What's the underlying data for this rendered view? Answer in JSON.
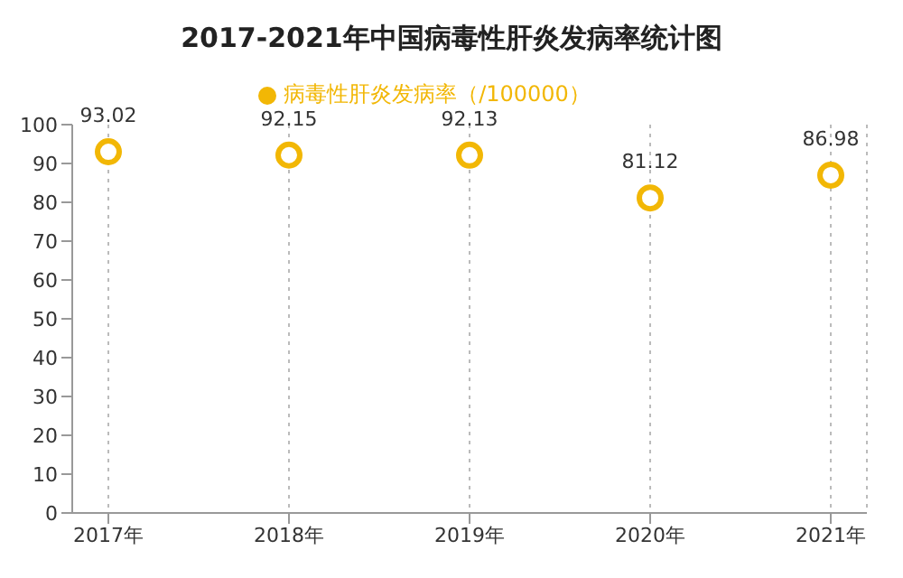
{
  "chart_data": {
    "type": "scatter",
    "title": "2017-2021年中国病毒性肝炎发病率统计图",
    "categories": [
      "2017年",
      "2018年",
      "2019年",
      "2020年",
      "2021年"
    ],
    "series": [
      {
        "name": "病毒性肝炎发病率（/100000）",
        "color": "#f2b705",
        "values": [
          93.02,
          92.15,
          92.13,
          81.12,
          86.98
        ]
      }
    ],
    "ylim": [
      0,
      100
    ],
    "yticks": [
      0,
      10,
      20,
      30,
      40,
      50,
      60,
      70,
      80,
      90,
      100
    ],
    "grid": "x",
    "legend": "top",
    "marker": "circle",
    "data_labels": true
  }
}
